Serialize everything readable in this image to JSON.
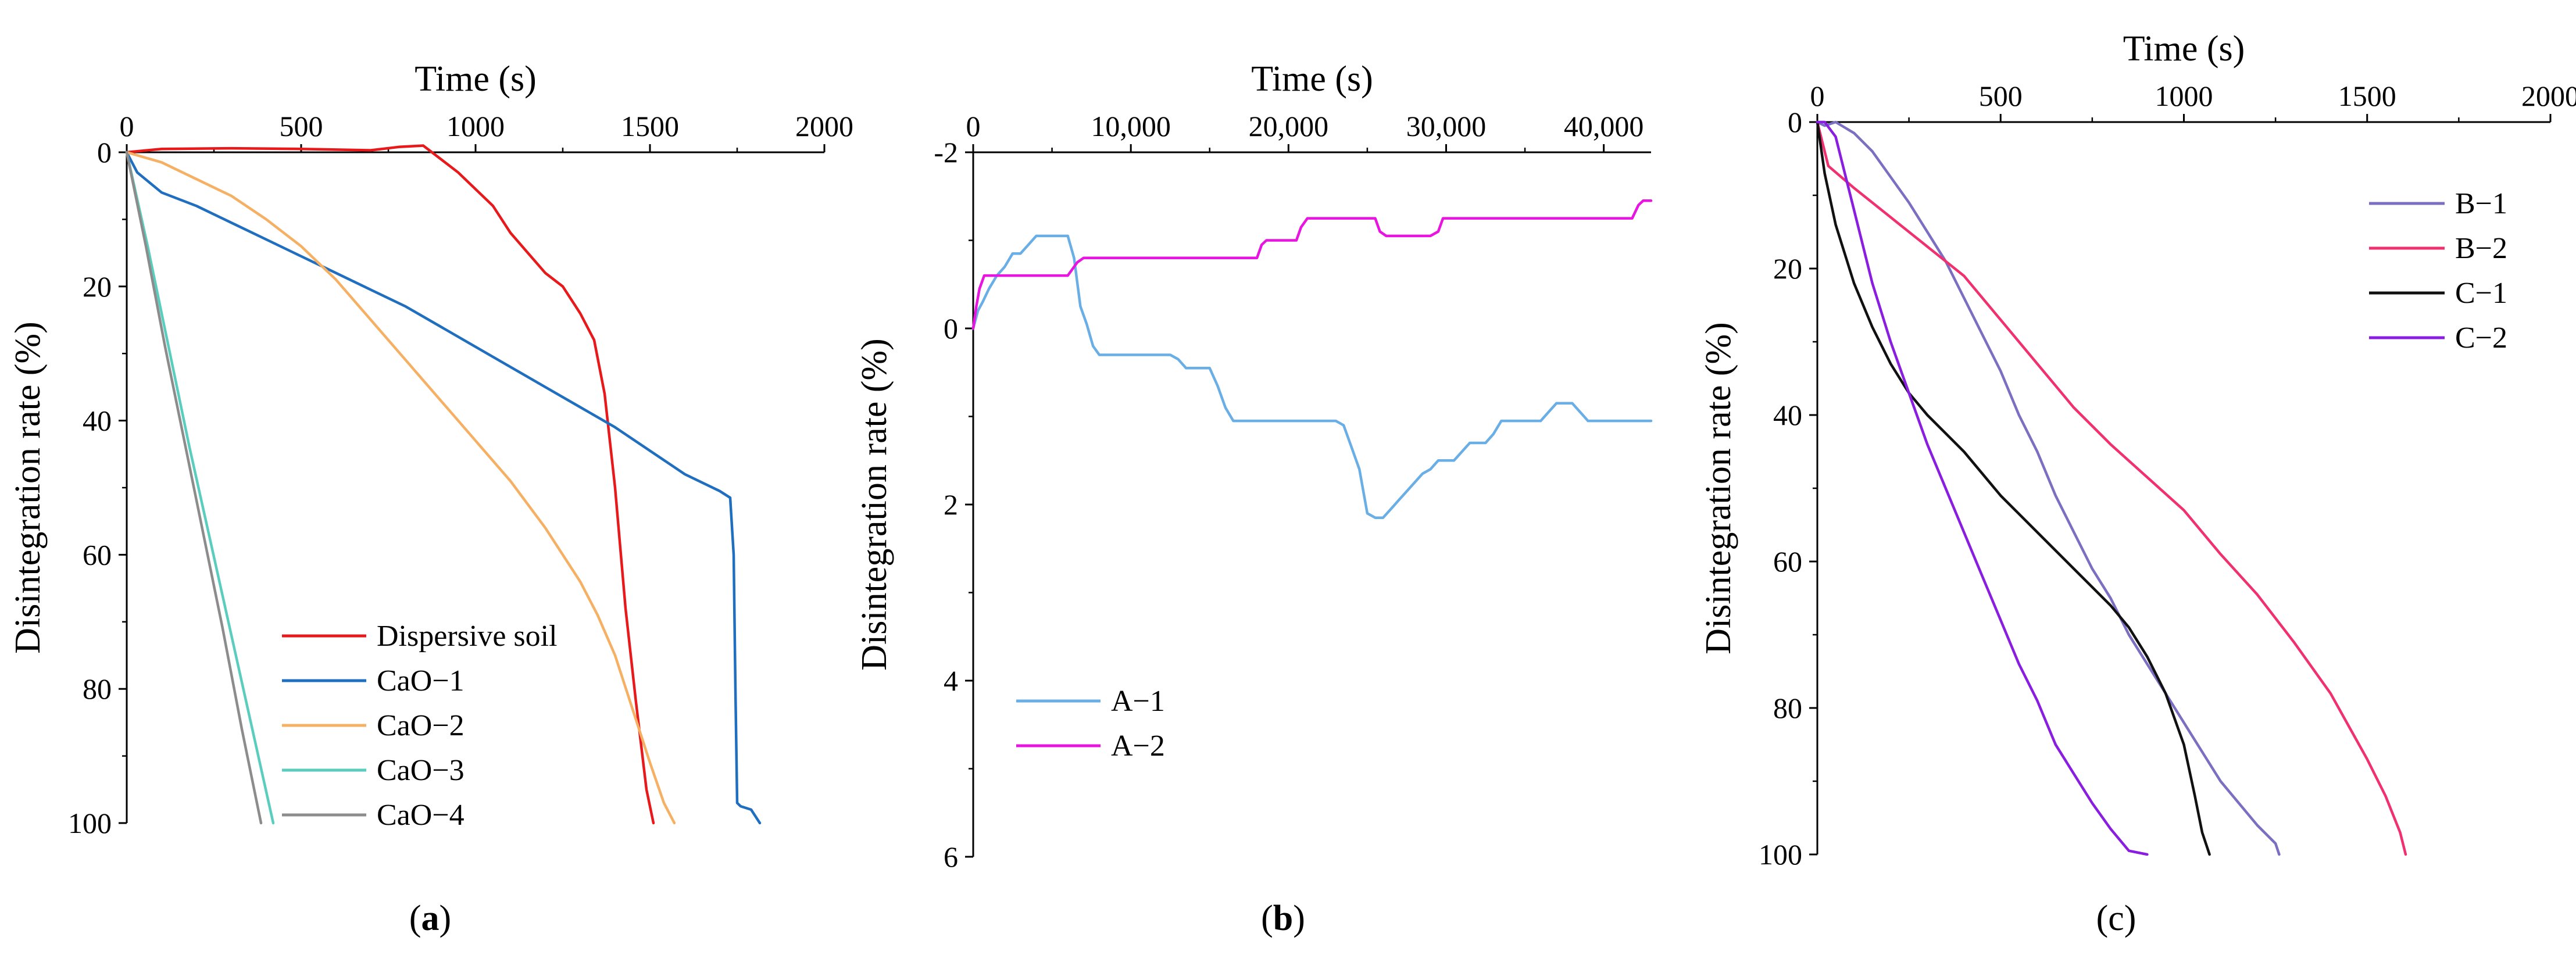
{
  "chart_data": [
    {
      "type": "line",
      "panel_label": "(a)",
      "xlabel": "Time (s)",
      "ylabel": "Disintegration rate (%)",
      "xlim": [
        0,
        2000
      ],
      "ylim": [
        0,
        100
      ],
      "y_inverted": true,
      "x_axis_position": "top",
      "xticks": [
        0,
        500,
        1000,
        1500,
        2000
      ],
      "xtick_labels": [
        "0",
        "500",
        "1000",
        "1500",
        "2000"
      ],
      "yticks": [
        0,
        20,
        40,
        60,
        80,
        100
      ],
      "ytick_labels": [
        "0",
        "20",
        "40",
        "60",
        "80",
        "100"
      ],
      "legend_position": "bottom-left",
      "series": [
        {
          "name": "Dispersive soil",
          "color": "#e8191b",
          "x": [
            0,
            100,
            300,
            500,
            700,
            780,
            850,
            950,
            1050,
            1100,
            1150,
            1200,
            1250,
            1300,
            1340,
            1370,
            1400,
            1430,
            1460,
            1490,
            1510
          ],
          "y": [
            0,
            -0.5,
            -0.6,
            -0.5,
            -0.3,
            -0.8,
            -1.0,
            3,
            8,
            12,
            15,
            18,
            20,
            24,
            28,
            36,
            50,
            68,
            82,
            95,
            100
          ]
        },
        {
          "name": "CaO−1",
          "color": "#1f6ebf",
          "x": [
            0,
            30,
            100,
            200,
            300,
            400,
            500,
            600,
            700,
            800,
            900,
            1000,
            1100,
            1200,
            1300,
            1400,
            1500,
            1600,
            1700,
            1730,
            1740,
            1745,
            1750,
            1760,
            1790,
            1815
          ],
          "y": [
            0,
            3,
            6,
            8,
            10.5,
            13,
            15.5,
            18,
            20.5,
            23,
            26,
            29,
            32,
            35,
            38,
            41,
            44.5,
            48,
            50.5,
            51.5,
            60,
            80,
            97,
            97.5,
            98,
            100
          ]
        },
        {
          "name": "CaO−2",
          "color": "#f6b064",
          "x": [
            0,
            100,
            200,
            300,
            400,
            500,
            600,
            700,
            800,
            900,
            1000,
            1100,
            1200,
            1300,
            1350,
            1400,
            1450,
            1500,
            1540,
            1570
          ],
          "y": [
            0,
            1.5,
            4,
            6.5,
            10,
            14,
            19,
            25,
            31,
            37,
            43,
            49,
            56,
            64,
            69,
            75,
            83,
            91,
            97,
            100
          ]
        },
        {
          "name": "CaO−3",
          "color": "#5bcdbe",
          "x": [
            0,
            60,
            120,
            180,
            240,
            300,
            360,
            420
          ],
          "y": [
            0,
            14,
            29,
            44,
            58,
            72,
            86,
            100
          ]
        },
        {
          "name": "CaO−4",
          "color": "#8c8c8c",
          "x": [
            0,
            55,
            110,
            165,
            220,
            275,
            330,
            385
          ],
          "y": [
            0,
            14,
            29,
            43,
            57,
            71,
            86,
            100
          ]
        }
      ]
    },
    {
      "type": "line",
      "panel_label": "(b)",
      "xlabel": "Time (s)",
      "ylabel": "Disintegration rate (%)",
      "xlim": [
        0,
        43000
      ],
      "ylim": [
        -2,
        6
      ],
      "y_inverted": true,
      "x_axis_position": "top",
      "xticks": [
        0,
        10000,
        20000,
        30000,
        40000
      ],
      "xtick_labels": [
        "0",
        "10,000",
        "20,000",
        "30,000",
        "40,000"
      ],
      "yticks": [
        -2,
        0,
        2,
        4,
        6
      ],
      "ytick_labels": [
        "-2",
        "0",
        "2",
        "4",
        "6"
      ],
      "legend_position": "bottom-left",
      "series": [
        {
          "name": "A−1",
          "color": "#6aaee6",
          "x": [
            0,
            300,
            600,
            1000,
            1500,
            2000,
            2500,
            3000,
            3500,
            4000,
            5000,
            6000,
            6400,
            6800,
            7200,
            7600,
            8000,
            8500,
            9000,
            10000,
            11000,
            12000,
            12500,
            13000,
            13500,
            14000,
            14500,
            15000,
            15500,
            16000,
            16500,
            17000,
            18000,
            19000,
            20000,
            21000,
            22000,
            23000,
            23500,
            24000,
            24500,
            25000,
            25500,
            26000,
            26500,
            27000,
            27500,
            28000,
            28500,
            29000,
            29500,
            30000,
            30500,
            31000,
            31500,
            32000,
            32500,
            33000,
            33500,
            34000,
            35000,
            36000,
            36500,
            37000,
            37500,
            38000,
            38500,
            39000,
            40000,
            41000,
            42000,
            43000
          ],
          "y": [
            0,
            -0.2,
            -0.3,
            -0.45,
            -0.6,
            -0.7,
            -0.85,
            -0.85,
            -0.95,
            -1.05,
            -1.05,
            -1.05,
            -0.8,
            -0.25,
            -0.05,
            0.2,
            0.3,
            0.3,
            0.3,
            0.3,
            0.3,
            0.3,
            0.3,
            0.35,
            0.45,
            0.45,
            0.45,
            0.45,
            0.65,
            0.9,
            1.05,
            1.05,
            1.05,
            1.05,
            1.05,
            1.05,
            1.05,
            1.05,
            1.1,
            1.35,
            1.6,
            2.1,
            2.15,
            2.15,
            2.05,
            1.95,
            1.85,
            1.75,
            1.65,
            1.6,
            1.5,
            1.5,
            1.5,
            1.4,
            1.3,
            1.3,
            1.3,
            1.2,
            1.05,
            1.05,
            1.05,
            1.05,
            0.95,
            0.85,
            0.85,
            0.85,
            0.95,
            1.05,
            1.05,
            1.05,
            1.05,
            1.05
          ]
        },
        {
          "name": "A−2",
          "color": "#e815e0",
          "x": [
            0,
            200,
            400,
            700,
            1000,
            3000,
            6000,
            6600,
            7000,
            10000,
            15000,
            18000,
            18300,
            18600,
            20500,
            20800,
            21200,
            24000,
            25500,
            25800,
            26200,
            29000,
            29500,
            29800,
            30200,
            35000,
            40000,
            41800,
            42200,
            42500,
            43000
          ],
          "y": [
            0,
            -0.25,
            -0.45,
            -0.6,
            -0.6,
            -0.6,
            -0.6,
            -0.75,
            -0.8,
            -0.8,
            -0.8,
            -0.8,
            -0.95,
            -1.0,
            -1.0,
            -1.15,
            -1.25,
            -1.25,
            -1.25,
            -1.1,
            -1.05,
            -1.05,
            -1.1,
            -1.25,
            -1.25,
            -1.25,
            -1.25,
            -1.25,
            -1.4,
            -1.45,
            -1.45
          ]
        }
      ]
    },
    {
      "type": "line",
      "panel_label": "(c)",
      "xlabel": "Time (s)",
      "ylabel": "Disintegration rate (%)",
      "xlim": [
        0,
        2000
      ],
      "ylim": [
        0,
        100
      ],
      "y_inverted": true,
      "x_axis_position": "top",
      "xticks": [
        0,
        500,
        1000,
        1500,
        2000
      ],
      "xtick_labels": [
        "0",
        "500",
        "1000",
        "1500",
        "2000"
      ],
      "yticks": [
        0,
        20,
        40,
        60,
        80,
        100
      ],
      "ytick_labels": [
        "0",
        "20",
        "40",
        "60",
        "80",
        "100"
      ],
      "legend_position": "top-right",
      "series": [
        {
          "name": "B−1",
          "color": "#7b6fc2",
          "x": [
            0,
            20,
            50,
            100,
            150,
            200,
            250,
            300,
            350,
            400,
            450,
            500,
            550,
            600,
            650,
            700,
            750,
            800,
            850,
            900,
            950,
            1000,
            1050,
            1100,
            1150,
            1200,
            1250,
            1260
          ],
          "y": [
            0,
            0.5,
            0,
            1.5,
            4,
            7.5,
            11,
            15,
            19,
            24,
            29,
            34,
            40,
            45,
            51,
            56,
            61,
            65,
            70,
            74,
            78,
            82,
            86,
            90,
            93,
            96,
            98.5,
            100
          ]
        },
        {
          "name": "B−2",
          "color": "#f0306f",
          "x": [
            0,
            30,
            100,
            200,
            300,
            400,
            500,
            600,
            700,
            800,
            900,
            1000,
            1100,
            1200,
            1300,
            1400,
            1500,
            1550,
            1590,
            1605
          ],
          "y": [
            0,
            6,
            9,
            13,
            17,
            21,
            27,
            33,
            39,
            44,
            48.5,
            53,
            59,
            64.5,
            71,
            78,
            87,
            92,
            97,
            100
          ]
        },
        {
          "name": "C−1",
          "color": "#111111",
          "x": [
            0,
            20,
            50,
            100,
            150,
            200,
            250,
            300,
            400,
            500,
            600,
            700,
            800,
            850,
            900,
            950,
            1000,
            1030,
            1050,
            1070
          ],
          "y": [
            0,
            7,
            14,
            22,
            28,
            33,
            37,
            40,
            45,
            51,
            56,
            61,
            66,
            69,
            73,
            78,
            85,
            92,
            97,
            100
          ]
        },
        {
          "name": "C−2",
          "color": "#8a1ee0",
          "x": [
            0,
            20,
            50,
            100,
            150,
            200,
            250,
            300,
            350,
            400,
            450,
            500,
            550,
            600,
            650,
            700,
            750,
            800,
            850,
            880,
            900
          ],
          "y": [
            0,
            0,
            2,
            12,
            22,
            30,
            37,
            44,
            50,
            56,
            62,
            68,
            74,
            79,
            85,
            89,
            93,
            96.5,
            99.5,
            99.8,
            100
          ]
        }
      ]
    }
  ]
}
